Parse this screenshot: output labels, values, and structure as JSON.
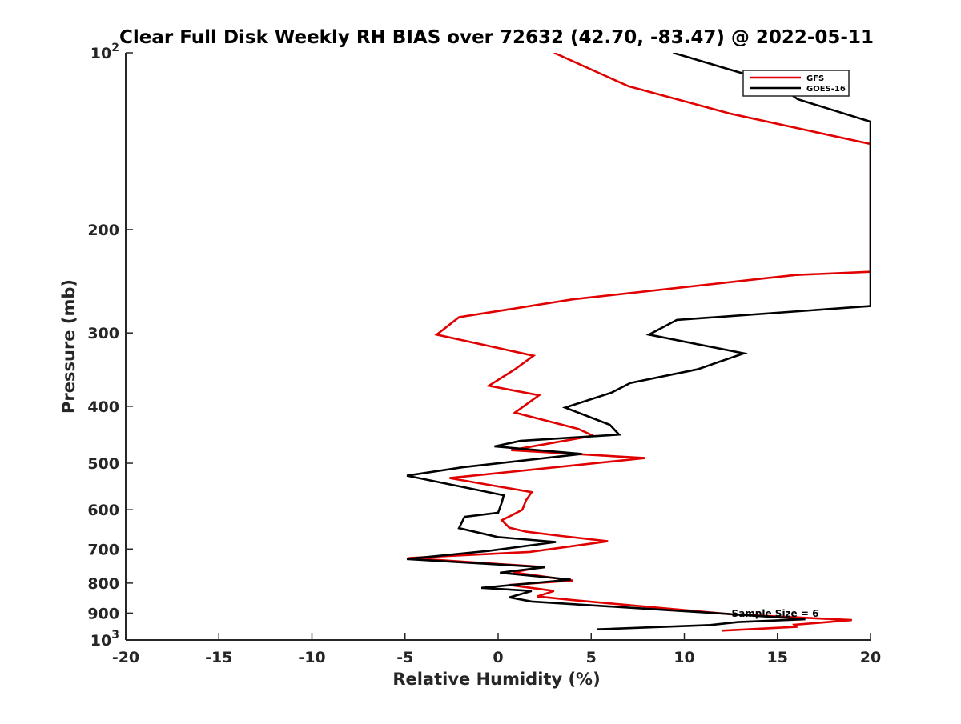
{
  "chart_data": {
    "type": "line",
    "title": "Clear Full Disk Weekly RH BIAS over 72632 (42.70, -83.47) @ 2022-05-11",
    "xlabel": "Relative Humidity (%)",
    "ylabel": "Pressure (mb)",
    "xlim": [
      -20,
      20
    ],
    "ylim": [
      100,
      1000
    ],
    "y_scale": "log",
    "y_reversed": true,
    "grid": false,
    "legend_position": "top-right",
    "x_ticks": [
      "-20",
      "-15",
      "-10",
      "-5",
      "0",
      "5",
      "10",
      "15",
      "20"
    ],
    "y_ticks": [
      {
        "value": 100,
        "base": "10",
        "exp": "2"
      },
      {
        "value": 200,
        "label": "200"
      },
      {
        "value": 300,
        "label": "300"
      },
      {
        "value": 400,
        "label": "400"
      },
      {
        "value": 500,
        "label": "500"
      },
      {
        "value": 600,
        "label": "600"
      },
      {
        "value": 700,
        "label": "700"
      },
      {
        "value": 800,
        "label": "800"
      },
      {
        "value": 900,
        "label": "900"
      },
      {
        "value": 1000,
        "base": "10",
        "exp": "3"
      }
    ],
    "series": [
      {
        "name": "GFS",
        "color": "#e00000",
        "points": [
          [
            3.0,
            100
          ],
          [
            7.0,
            114
          ],
          [
            12.5,
            127
          ],
          [
            20.0,
            143
          ],
          [
            20.0,
            236
          ],
          [
            16.0,
            239
          ],
          [
            14.4,
            242
          ],
          [
            4.0,
            263
          ],
          [
            -2.1,
            282
          ],
          [
            -3.3,
            302
          ],
          [
            1.9,
            328
          ],
          [
            0.9,
            346
          ],
          [
            -0.5,
            369
          ],
          [
            2.2,
            383
          ],
          [
            0.9,
            410
          ],
          [
            4.3,
            437
          ],
          [
            5.1,
            449
          ],
          [
            0.7,
            475
          ],
          [
            7.9,
            490
          ],
          [
            -2.6,
            530
          ],
          [
            1.8,
            560
          ],
          [
            1.5,
            578
          ],
          [
            1.3,
            600
          ],
          [
            0.7,
            614
          ],
          [
            0.2,
            625
          ],
          [
            0.6,
            644
          ],
          [
            1.5,
            654
          ],
          [
            3.4,
            665
          ],
          [
            5.9,
            679
          ],
          [
            1.7,
            708
          ],
          [
            -4.8,
            725
          ],
          [
            2.4,
            751
          ],
          [
            0.8,
            767
          ],
          [
            4.0,
            792
          ],
          [
            0.6,
            806
          ],
          [
            3.0,
            825
          ],
          [
            2.1,
            843
          ],
          [
            4.0,
            855
          ],
          [
            12.5,
            904
          ],
          [
            19.0,
            925
          ],
          [
            15.9,
            942
          ],
          [
            16.0,
            950
          ],
          [
            12.0,
            964
          ]
        ]
      },
      {
        "name": "GOES-16",
        "color": "#000000",
        "points": [
          [
            9.4,
            100
          ],
          [
            13.4,
            109
          ],
          [
            15.6,
            117
          ],
          [
            16.1,
            120
          ],
          [
            20.0,
            131
          ],
          [
            20.0,
            270
          ],
          [
            11.0,
            283
          ],
          [
            9.6,
            285
          ],
          [
            8.1,
            302
          ],
          [
            13.2,
            325
          ],
          [
            10.7,
            346
          ],
          [
            7.1,
            365
          ],
          [
            6.1,
            379
          ],
          [
            3.6,
            402
          ],
          [
            6.0,
            430
          ],
          [
            6.5,
            447
          ],
          [
            1.2,
            458
          ],
          [
            -0.2,
            468
          ],
          [
            4.5,
            482
          ],
          [
            -1.9,
            508
          ],
          [
            -4.9,
            525
          ],
          [
            0.3,
            567
          ],
          [
            0.2,
            583
          ],
          [
            0.0,
            607
          ],
          [
            -1.8,
            617
          ],
          [
            -2.1,
            645
          ],
          [
            0.0,
            668
          ],
          [
            3.1,
            681
          ],
          [
            -0.5,
            705
          ],
          [
            -4.9,
            728
          ],
          [
            2.5,
            752
          ],
          [
            0.1,
            768
          ],
          [
            3.9,
            789
          ],
          [
            -0.9,
            815
          ],
          [
            1.8,
            825
          ],
          [
            0.6,
            846
          ],
          [
            1.8,
            860
          ],
          [
            12.4,
            903
          ],
          [
            16.5,
            922
          ],
          [
            12.9,
            932
          ],
          [
            11.4,
            943
          ],
          [
            5.3,
            959
          ]
        ]
      }
    ],
    "annotations": [
      {
        "text": "Sample Size = 6"
      }
    ]
  }
}
